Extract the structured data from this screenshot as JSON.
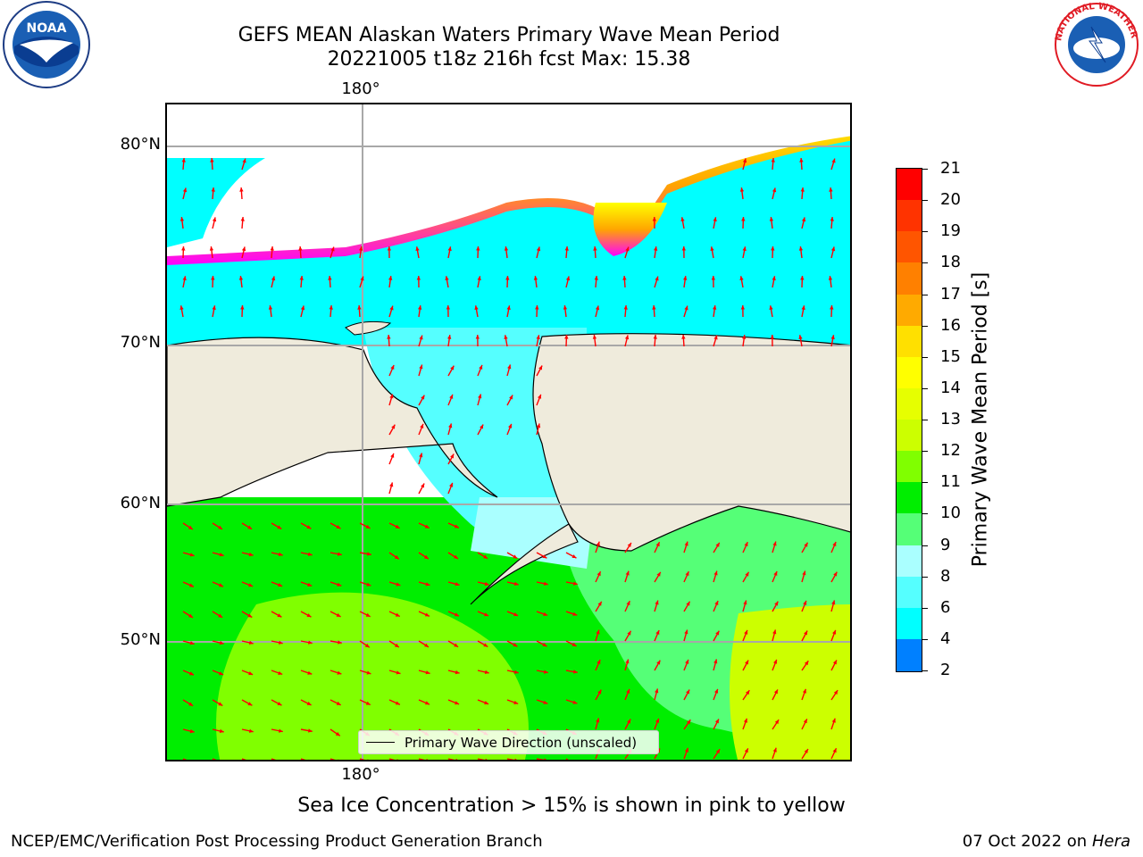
{
  "title": {
    "line1": "GEFS MEAN Alaskan Waters Primary Wave Mean Period",
    "line2": "20221005 t18z 216h fcst   Max: 15.38"
  },
  "map": {
    "lon_label_top": "180°",
    "lon_label_bottom": "180°",
    "lat_labels": [
      "80°N",
      "70°N",
      "60°N",
      "50°N"
    ],
    "legend_text": "Primary Wave Direction (unscaled)",
    "vector_color": "#ff0000",
    "land_color": "#efebdc",
    "ice_colors": [
      "#ff00ff",
      "#ffa500",
      "#ffff00"
    ]
  },
  "colorbar": {
    "label": "Primary Wave Mean Period [s]",
    "ticks": [
      "21",
      "20",
      "19",
      "18",
      "17",
      "16",
      "15",
      "14",
      "13",
      "12",
      "11",
      "10",
      "9",
      "8",
      "6",
      "4",
      "2"
    ],
    "colors": [
      "#ff0000",
      "#ff3300",
      "#ff5500",
      "#ff8000",
      "#ffaa00",
      "#ffe000",
      "#ffff00",
      "#e6ff00",
      "#ccff00",
      "#80ff00",
      "#00ee00",
      "#55ff77",
      "#aaffff",
      "#55ffff",
      "#00ffff",
      "#0080ff"
    ],
    "extend_color": "#0000ff"
  },
  "footer": {
    "note": "Sea Ice Concentration > 15% is shown in pink to yellow",
    "credit": "NCEP/EMC/Verification Post Processing Product Generation Branch",
    "date": "07 Oct 2022 on",
    "host": "Hera"
  },
  "logos": {
    "noaa_text": "NOAA",
    "nws_text": "NATIONAL WEATHER SERVICE"
  }
}
